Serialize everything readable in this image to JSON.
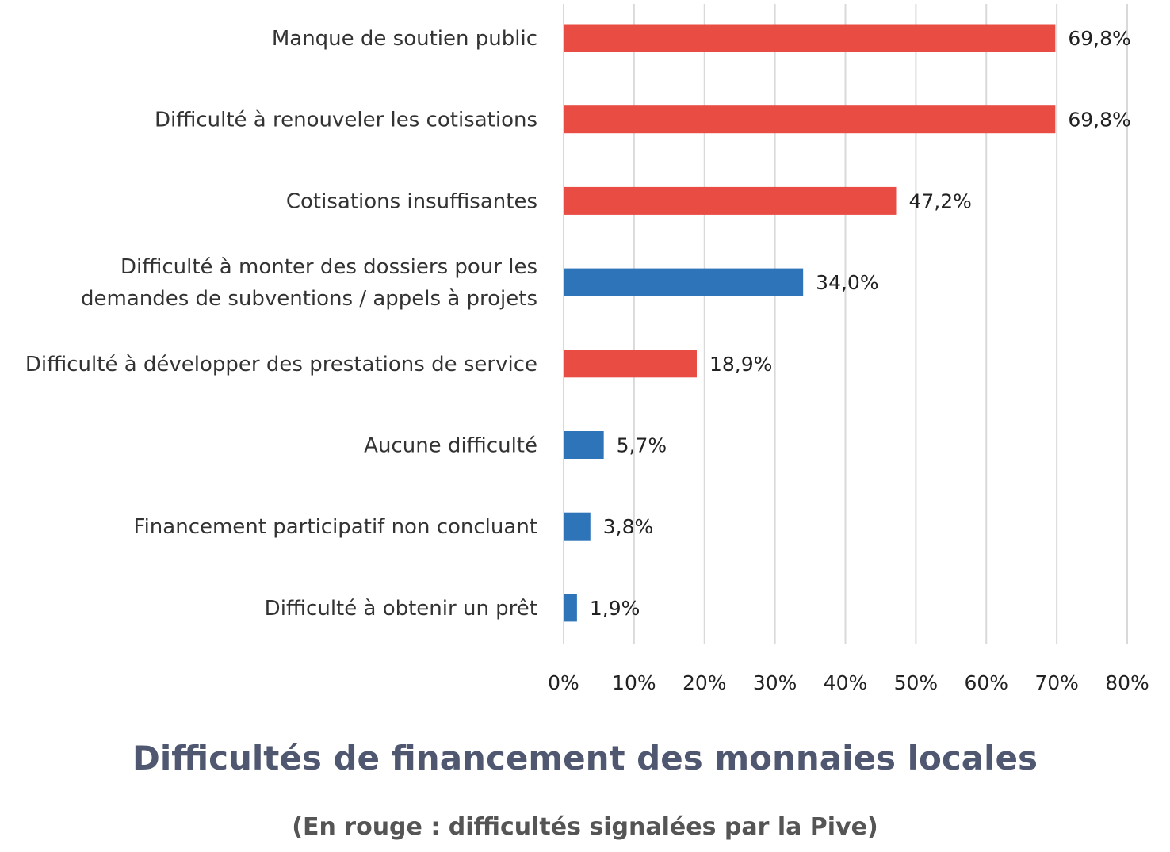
{
  "colors": {
    "red": "#e84c43",
    "blue": "#2e74b8",
    "title": "#4f5870",
    "subtitle": "#555555",
    "grid": "#d9d9d9"
  },
  "chart_data": {
    "type": "bar",
    "orientation": "horizontal",
    "title": "Difficultés de financement des monnaies locales",
    "subtitle": "(En rouge : difficultés signalées par la Pive)",
    "xlim": [
      0,
      80
    ],
    "x_ticks": [
      "0%",
      "10%",
      "20%",
      "30%",
      "40%",
      "50%",
      "60%",
      "70%",
      "80%"
    ],
    "grid": "vertical",
    "categories": [
      [
        "Manque de soutien public"
      ],
      [
        "Difficulté à renouveler les cotisations"
      ],
      [
        "Cotisations insuffisantes"
      ],
      [
        "Difficulté à monter des dossiers pour les",
        "demandes de subventions / appels à projets"
      ],
      [
        "Difficulté à développer des prestations de service"
      ],
      [
        "Aucune difficulté"
      ],
      [
        "Financement participatif non concluant"
      ],
      [
        "Difficulté à obtenir un prêt"
      ]
    ],
    "values": [
      69.8,
      69.8,
      47.2,
      34.0,
      18.9,
      5.7,
      3.8,
      1.9
    ],
    "value_labels": [
      "69,8%",
      "69,8%",
      "47,2%",
      "34,0%",
      "18,9%",
      "5,7%",
      "3,8%",
      "1,9%"
    ],
    "bar_colors": [
      "red",
      "red",
      "red",
      "blue",
      "red",
      "blue",
      "blue",
      "blue"
    ]
  }
}
